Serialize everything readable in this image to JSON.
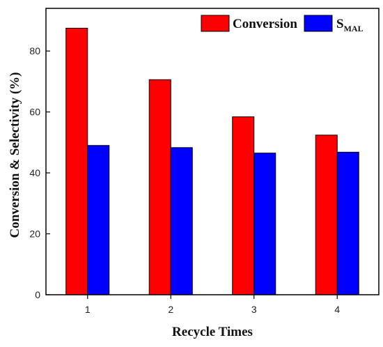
{
  "chart_data": {
    "type": "bar",
    "categories": [
      "1",
      "2",
      "3",
      "4"
    ],
    "series": [
      {
        "name": "Conversion",
        "values": [
          87.5,
          70.6,
          58.4,
          52.4
        ],
        "color": "#ff0000"
      },
      {
        "name": "S",
        "name_subscript": "MAL",
        "values": [
          49.0,
          48.3,
          46.5,
          46.8
        ],
        "color": "#0000ff"
      }
    ],
    "xlabel": "Recycle Times",
    "ylabel": "Conversion & Selectivity  (%)",
    "ylim": [
      0,
      94
    ],
    "yticks": [
      "0",
      "20",
      "40",
      "60",
      "80"
    ],
    "grid": false,
    "legend_position": "top-right"
  }
}
